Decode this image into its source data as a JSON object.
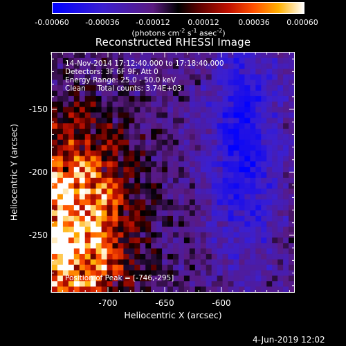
{
  "colorbar": {
    "ticks": [
      "-0.00060",
      "-0.00036",
      "-0.00012",
      "0.00012",
      "0.00036",
      "0.00060"
    ],
    "units": "(photons cm",
    "units_sup1": "-2",
    "units_mid": " s",
    "units_sup2": "-1",
    "units_end": " asec",
    "units_sup3": "-2",
    "units_close": ")"
  },
  "title": "Reconstructed RHESSI Image",
  "info": {
    "line1": "14-Nov-2014 17:12:40.000 to 17:18:40.000",
    "line2": "Detectors: 3F 6F 9F, Att 0",
    "line3": "Energy Range: 25.0 - 50.0 keV",
    "line4": "Clean     Total counts: 3.74E+03"
  },
  "peak_text": "Position of Peak = [-746,-295]",
  "x_axis": {
    "label": "Heliocentric X (arcsec)",
    "ticks": [
      "-700",
      "-650",
      "-600"
    ]
  },
  "y_axis": {
    "label": "Heliocentric Y (arcsec)",
    "ticks": [
      "-150",
      "-200",
      "-250"
    ]
  },
  "datestamp": "4-Jun-2019 12:02",
  "colors": {
    "background": "#000000",
    "colormap_low": "#0000ff",
    "colormap_mid": "#000000",
    "colormap_high": "#ffffff"
  }
}
